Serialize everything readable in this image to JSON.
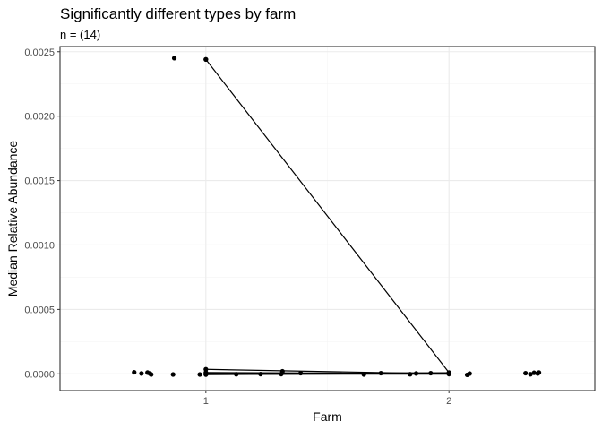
{
  "chart_data": {
    "type": "scatter",
    "title": "Significantly different types by farm",
    "subtitle": "n = (14)",
    "xlabel": "Farm",
    "ylabel": "Median Relative Abundance",
    "categories": [
      "1",
      "2"
    ],
    "xlim": [
      0.4,
      2.6
    ],
    "ylim": [
      -0.00013,
      0.00254
    ],
    "y_ticks": [
      0,
      0.0005,
      0.001,
      0.0015,
      0.002,
      0.0025
    ],
    "y_tick_labels": [
      "0.0000",
      "0.0005",
      "0.0010",
      "0.0015",
      "0.0020",
      "0.0025"
    ],
    "x_ticks": [
      1,
      2
    ],
    "x_tick_labels": [
      "1",
      "2"
    ],
    "grid": true,
    "legend": "none",
    "jitter_points": [
      {
        "x": 0.705,
        "y": 1.2e-05
      },
      {
        "x": 0.735,
        "y": 3e-06
      },
      {
        "x": 0.76,
        "y": 1e-05
      },
      {
        "x": 0.77,
        "y": 2e-06
      },
      {
        "x": 0.775,
        "y": -5e-06
      },
      {
        "x": 0.865,
        "y": -5e-06
      },
      {
        "x": 0.87,
        "y": 0.00245
      },
      {
        "x": 0.975,
        "y": -5e-06
      },
      {
        "x": 1.0,
        "y": 0.00244
      },
      {
        "x": 1.125,
        "y": -3e-06
      },
      {
        "x": 1.225,
        "y": -2e-06
      },
      {
        "x": 1.31,
        "y": -2e-06
      },
      {
        "x": 1.315,
        "y": 2e-05
      },
      {
        "x": 1.39,
        "y": 5e-06
      },
      {
        "x": 1.65,
        "y": -5e-06
      },
      {
        "x": 1.72,
        "y": 5e-06
      },
      {
        "x": 1.84,
        "y": -3e-06
      },
      {
        "x": 1.865,
        "y": 3e-06
      },
      {
        "x": 1.925,
        "y": 5e-06
      },
      {
        "x": 2.075,
        "y": -8e-06
      },
      {
        "x": 2.085,
        "y": 2e-06
      },
      {
        "x": 2.315,
        "y": 5e-06
      },
      {
        "x": 2.335,
        "y": -3e-06
      },
      {
        "x": 2.35,
        "y": 8e-06
      },
      {
        "x": 2.365,
        "y": 3e-06
      },
      {
        "x": 2.37,
        "y": 1e-05
      }
    ],
    "paired_lines": [
      {
        "from": {
          "x": 1,
          "y": 0.00244
        },
        "to": {
          "x": 2,
          "y": 1e-05
        }
      },
      {
        "from": {
          "x": 1,
          "y": 3.5e-05
        },
        "to": {
          "x": 2,
          "y": 0.0
        }
      },
      {
        "from": {
          "x": 1,
          "y": 1e-05
        },
        "to": {
          "x": 2,
          "y": 2e-06
        }
      },
      {
        "from": {
          "x": 1,
          "y": 2e-06
        },
        "to": {
          "x": 2,
          "y": 8e-06
        }
      },
      {
        "from": {
          "x": 1,
          "y": -3e-06
        },
        "to": {
          "x": 2,
          "y": -2e-06
        }
      },
      {
        "from": {
          "x": 1,
          "y": -6e-06
        },
        "to": {
          "x": 2,
          "y": 4e-06
        }
      }
    ]
  }
}
